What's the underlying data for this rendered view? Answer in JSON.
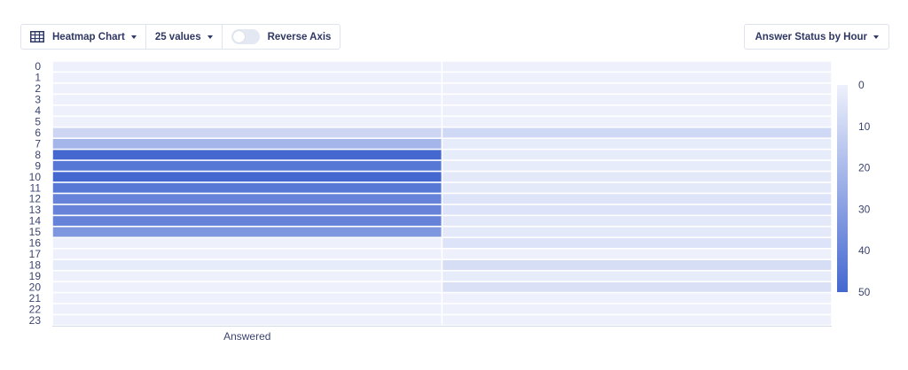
{
  "toolbar": {
    "chart_type_label": "Heatmap Chart",
    "values_label": "25 values",
    "reverse_axis_label": "Reverse Axis",
    "reverse_axis_on": false
  },
  "selector": {
    "label": "Answer Status by Hour"
  },
  "colors": {
    "low": "#eef1fc",
    "high": "#4468d0",
    "gridline": "#ffffff",
    "axis_text": "#3b4470"
  },
  "chart_data": {
    "type": "heatmap",
    "x_categories": [
      "Answered",
      ""
    ],
    "y_categories": [
      "0",
      "1",
      "2",
      "3",
      "4",
      "5",
      "6",
      "7",
      "8",
      "9",
      "10",
      "11",
      "12",
      "13",
      "14",
      "15",
      "16",
      "17",
      "18",
      "19",
      "20",
      "21",
      "22",
      "23"
    ],
    "values": [
      [
        0,
        0
      ],
      [
        0,
        0
      ],
      [
        0,
        0
      ],
      [
        0,
        0
      ],
      [
        0,
        0
      ],
      [
        0,
        0
      ],
      [
        10,
        9
      ],
      [
        22,
        2
      ],
      [
        50,
        2
      ],
      [
        44,
        2
      ],
      [
        50,
        3
      ],
      [
        44,
        3
      ],
      [
        40,
        5
      ],
      [
        40,
        5
      ],
      [
        40,
        3
      ],
      [
        33,
        3
      ],
      [
        0,
        5
      ],
      [
        0,
        0
      ],
      [
        2,
        7
      ],
      [
        0,
        2
      ],
      [
        0,
        6
      ],
      [
        0,
        0
      ],
      [
        0,
        0
      ],
      [
        0,
        0
      ]
    ],
    "color_scale": {
      "min": 0,
      "max": 50,
      "ticks": [
        0,
        10,
        20,
        30,
        40,
        50
      ]
    },
    "xlabel": "",
    "ylabel": ""
  }
}
